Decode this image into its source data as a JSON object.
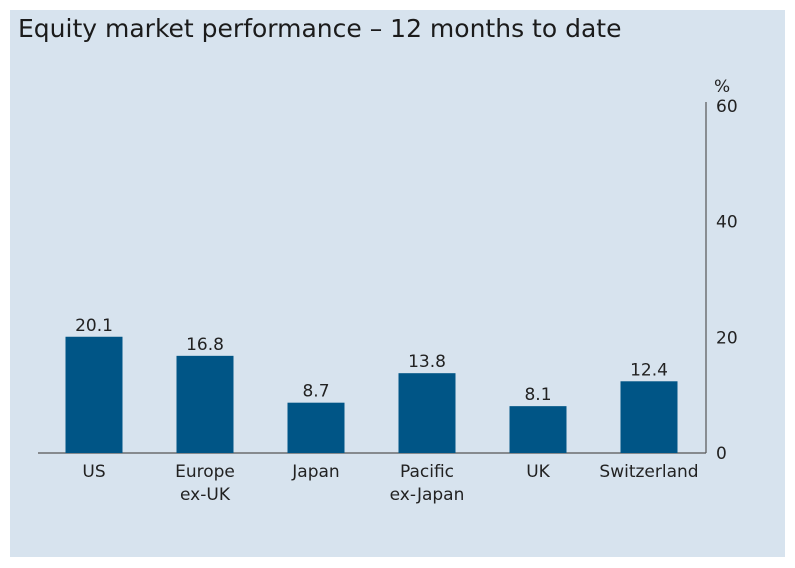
{
  "chart_data": {
    "type": "bar",
    "title": "Equity market performance – 12 months to date",
    "ylabel": "%",
    "categories": [
      [
        "US"
      ],
      [
        "Europe",
        "ex-UK"
      ],
      [
        "Japan"
      ],
      [
        "Pacific",
        "ex-Japan"
      ],
      [
        "UK"
      ],
      [
        "Switzerland"
      ]
    ],
    "values": [
      20.1,
      16.8,
      8.7,
      13.8,
      8.1,
      12.4
    ],
    "data_labels": [
      "20.1",
      "16.8",
      "8.7",
      "13.8",
      "8.1",
      "12.4"
    ],
    "yticks": [
      0,
      20,
      40,
      60
    ],
    "ylim": [
      0,
      60
    ],
    "axis_side": "right",
    "grid": false,
    "colors": {
      "bar": "#005586",
      "background": "#d7e3ee",
      "axis": "#555555"
    }
  }
}
